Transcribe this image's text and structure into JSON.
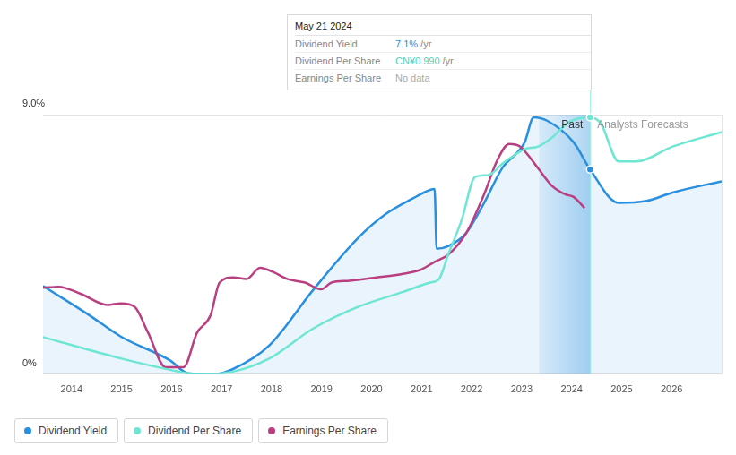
{
  "chart_data": {
    "type": "line",
    "legend": "bottom",
    "grid": true,
    "xlim": [
      2013.43,
      2027
    ],
    "xticks": [
      2014,
      2015,
      2016,
      2017,
      2018,
      2019,
      2020,
      2021,
      2022,
      2023,
      2024,
      2025,
      2026
    ],
    "ylim": [
      0,
      9
    ],
    "yticks": [
      {
        "value": 0,
        "label": "0%"
      },
      {
        "value": 9,
        "label": "9.0%"
      }
    ],
    "y2lim": [
      0,
      1
    ],
    "series": [
      {
        "name": "Dividend Yield",
        "color": "#2a8fde",
        "x": [
          2013.43,
          2014.36,
          2015.0,
          2015.97,
          2016.33,
          2016.87,
          2017.23,
          2017.95,
          2018.84,
          2019.74,
          2020.28,
          2020.82,
          2021.17,
          2021.26,
          2021.3,
          2021.53,
          2021.89,
          2022.25,
          2022.61,
          2023.06,
          2023.24,
          2023.51,
          2024.04,
          2024.37,
          2024.94,
          2025.48,
          2026.02,
          2027.0
        ],
        "values": [
          3.06,
          2.04,
          1.29,
          0.48,
          0.03,
          0,
          0.18,
          0.99,
          2.94,
          4.74,
          5.55,
          6.09,
          6.39,
          6.42,
          4.35,
          4.44,
          4.89,
          5.94,
          7.14,
          8.04,
          8.91,
          8.79,
          8.04,
          7.1,
          5.94,
          6.0,
          6.3,
          6.69
        ]
      },
      {
        "name": "Dividend Per Share",
        "color": "#6fe6d3",
        "axis": "y2",
        "x": [
          2013.43,
          2015.0,
          2015.97,
          2016.51,
          2017.23,
          2017.95,
          2018.84,
          2019.74,
          2020.63,
          2021.17,
          2021.35,
          2021.53,
          2021.8,
          2022.07,
          2022.34,
          2022.61,
          2023.06,
          2023.33,
          2023.6,
          2023.96,
          2024.37,
          2024.58,
          2024.94,
          2025.3,
          2026.02,
          2027.0
        ],
        "values": [
          0.143,
          0.06,
          0.017,
          0,
          0.01,
          0.06,
          0.177,
          0.26,
          0.317,
          0.353,
          0.367,
          0.46,
          0.593,
          0.76,
          0.767,
          0.81,
          0.867,
          0.877,
          0.91,
          0.973,
          0.99,
          0.967,
          0.82,
          0.82,
          0.877,
          0.933
        ]
      },
      {
        "name": "Earnings Per Share",
        "color": "#b93f80",
        "axis": "y2",
        "x": [
          2013.43,
          2013.74,
          2014.18,
          2014.72,
          2014.99,
          2015.26,
          2015.53,
          2015.88,
          2016.24,
          2016.51,
          2016.78,
          2016.96,
          2017.23,
          2017.5,
          2017.77,
          2018.04,
          2018.31,
          2018.67,
          2018.99,
          2019.2,
          2019.56,
          2020.1,
          2020.63,
          2020.99,
          2021.26,
          2021.53,
          2021.89,
          2022.25,
          2022.52,
          2022.75,
          2022.97,
          2023.33,
          2023.6,
          2023.87,
          2024.04,
          2024.26
        ],
        "values": [
          0.333,
          0.337,
          0.31,
          0.267,
          0.273,
          0.26,
          0.16,
          0.027,
          0.027,
          0.16,
          0.227,
          0.353,
          0.373,
          0.367,
          0.41,
          0.393,
          0.367,
          0.353,
          0.327,
          0.353,
          0.36,
          0.373,
          0.387,
          0.403,
          0.433,
          0.46,
          0.543,
          0.693,
          0.827,
          0.887,
          0.877,
          0.793,
          0.727,
          0.693,
          0.683,
          0.64
        ]
      }
    ],
    "annotations": [
      {
        "text": "Past",
        "xlim": [
          2023.35,
          2024.37
        ]
      },
      {
        "text": "Analysts Forecasts",
        "x": 2024.37
      }
    ],
    "tooltip": {
      "title": "May 21 2024",
      "x": 2024.37,
      "rows": [
        {
          "label": "Dividend Yield",
          "value": "7.1%",
          "unit": "/yr"
        },
        {
          "label": "Dividend Per Share",
          "value": "CN¥0.990",
          "unit": "/yr"
        },
        {
          "label": "Earnings Per Share",
          "value": "No data"
        }
      ]
    }
  }
}
